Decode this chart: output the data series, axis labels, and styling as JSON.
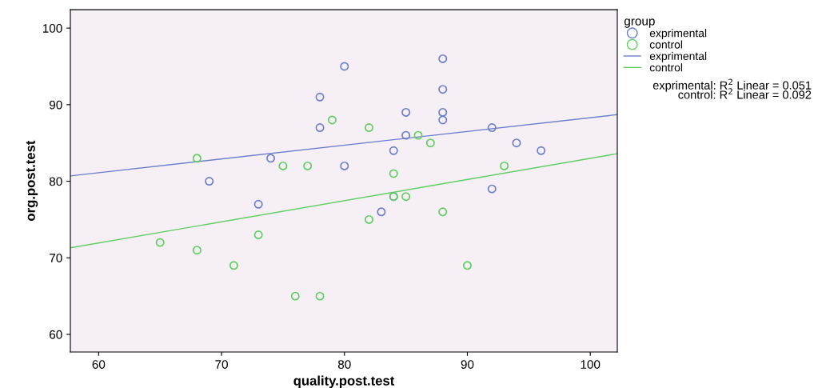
{
  "chart_data": {
    "type": "scatter",
    "xlabel": "quality.post.test",
    "ylabel": "org.post.test",
    "legend_title": "group",
    "legend": "right",
    "grid": false,
    "xlim": [
      57.7,
      102.2
    ],
    "xticks": [
      60,
      70,
      80,
      90,
      100
    ],
    "ylim": [
      57.7,
      102.4
    ],
    "yticks": [
      60,
      70,
      80,
      90,
      100
    ],
    "series": [
      {
        "name": "exprimental",
        "marker": "circle",
        "color": "#6b7fcc",
        "x": [
          69,
          73,
          74,
          78,
          78,
          80,
          80,
          83,
          84,
          84,
          85,
          85,
          88,
          88,
          88,
          88,
          92,
          92,
          94,
          96
        ],
        "values": [
          80,
          77,
          83,
          91,
          87,
          95,
          82,
          76,
          84,
          78,
          89,
          86,
          96,
          92,
          89,
          88,
          87,
          79,
          85,
          84
        ]
      },
      {
        "name": "control",
        "marker": "circle",
        "color": "#5ecf5e",
        "x": [
          65,
          68,
          68,
          71,
          73,
          75,
          76,
          77,
          78,
          79,
          82,
          82,
          84,
          84,
          85,
          86,
          87,
          88,
          90,
          93
        ],
        "values": [
          72,
          83,
          71,
          69,
          73,
          82,
          65,
          82,
          65,
          88,
          87,
          75,
          81,
          78,
          78,
          86,
          85,
          76,
          69,
          82
        ]
      },
      {
        "name": "exprimental",
        "type": "line",
        "marker": "none",
        "color": "#6b7fcc",
        "x": [
          57.7,
          102.2
        ],
        "values": [
          80.7,
          88.7
        ]
      },
      {
        "name": "control",
        "type": "line",
        "marker": "none",
        "color": "#5ecf5e",
        "x": [
          57.7,
          102.2
        ],
        "values": [
          71.3,
          83.6
        ]
      }
    ],
    "annotations": [
      "exprimental: R$^{2}$ Linear = 0.051",
      "control: R$^{2}$ Linear = 0.092"
    ]
  }
}
